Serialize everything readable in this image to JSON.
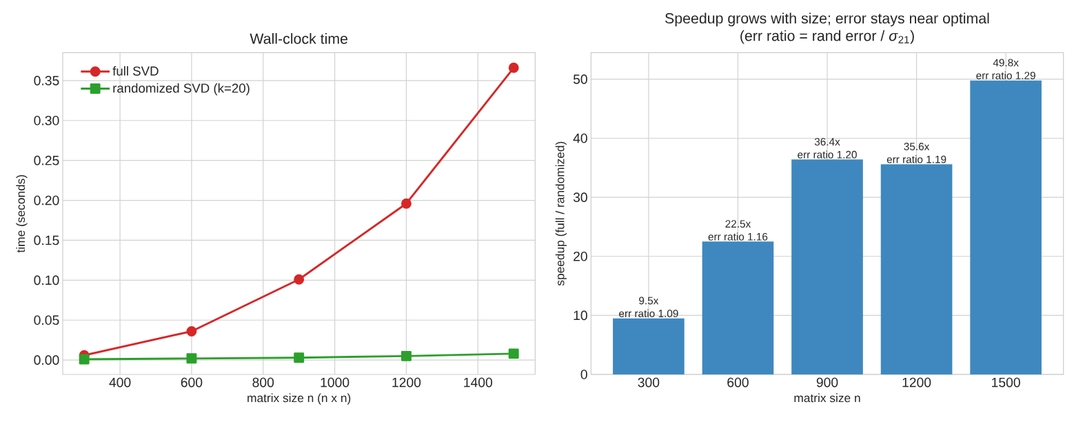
{
  "chart_data": [
    {
      "type": "line",
      "title": "Wall-clock time",
      "xlabel": "matrix size n (n x n)",
      "ylabel": "time (seconds)",
      "x": [
        300,
        600,
        900,
        1200,
        1500
      ],
      "series": [
        {
          "name": "full SVD",
          "color": "#d62728",
          "marker": "circle",
          "values": [
            0.006,
            0.036,
            0.101,
            0.196,
            0.366
          ]
        },
        {
          "name": "randomized SVD (k=20)",
          "color": "#2ca02c",
          "marker": "square",
          "values": [
            0.001,
            0.002,
            0.003,
            0.005,
            0.008
          ]
        }
      ],
      "xlim": [
        240,
        1560
      ],
      "ylim": [
        -0.018,
        0.385
      ],
      "xticks": [
        400,
        600,
        800,
        1000,
        1200,
        1400
      ],
      "yticks": [
        {
          "value": 0,
          "label": "0.00"
        },
        {
          "value": 0.05,
          "label": "0.05"
        },
        {
          "value": 0.1,
          "label": "0.10"
        },
        {
          "value": 0.15,
          "label": "0.15"
        },
        {
          "value": 0.2,
          "label": "0.20"
        },
        {
          "value": 0.25,
          "label": "0.25"
        },
        {
          "value": 0.3,
          "label": "0.30"
        },
        {
          "value": 0.35,
          "label": "0.35"
        }
      ],
      "grid": true,
      "legend": "top left",
      "line_style": "solid"
    },
    {
      "type": "bar",
      "title": "Speedup grows with size; error stays near optimal",
      "subtitle": "(err ratio = rand error / *σ*$_{21}$)",
      "xlabel": "matrix size n",
      "ylabel": "speedup (full / randomized)",
      "categories": [
        "300",
        "600",
        "900",
        "1200",
        "1500"
      ],
      "values": [
        9.5,
        22.5,
        36.4,
        35.6,
        49.8
      ],
      "color": "#3f88bf",
      "value_labels": [
        "9.5x",
        "22.5x",
        "36.4x",
        "35.6x",
        "49.8x"
      ],
      "annotations": [
        {
          "text": "err ratio 1.09",
          "x": "300",
          "y": 9.5
        },
        {
          "text": "err ratio 1.16",
          "x": "600",
          "y": 22.5
        },
        {
          "text": "err ratio 1.20",
          "x": "900",
          "y": 36.4
        },
        {
          "text": "err ratio 1.19",
          "x": "1200",
          "y": 35.6
        },
        {
          "text": "err ratio 1.29",
          "x": "1500",
          "y": 49.8
        }
      ],
      "ylim": [
        0,
        54.5
      ],
      "yticks": [
        0,
        10,
        20,
        30,
        40,
        50
      ],
      "grid": true
    }
  ]
}
